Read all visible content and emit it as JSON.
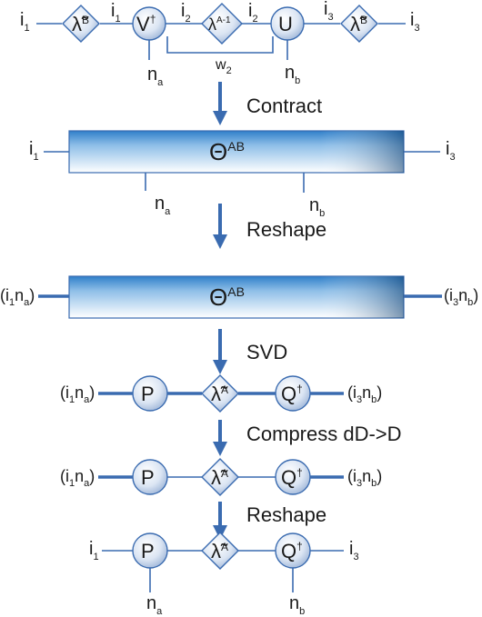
{
  "tensor_labels": {
    "lambda_b": {
      "base": "λ̃",
      "sup": "B"
    },
    "v_dagger": {
      "base": "V",
      "sup": "†"
    },
    "lambda_a_inv": {
      "base": "λ",
      "sup": "A-1"
    },
    "u": {
      "base": "U"
    },
    "theta": {
      "base": "Θ",
      "sup": "AB"
    },
    "p": {
      "base": "P"
    },
    "lambda_a": {
      "base": "λ̃",
      "sup": "A"
    },
    "q_dagger": {
      "base": "Q",
      "sup": "†"
    }
  },
  "index_labels": {
    "i": "i",
    "n": "n",
    "w": "w",
    "sub_1": "1",
    "sub_2": "2",
    "sub_3": "3",
    "sub_a": "a",
    "sub_b": "b",
    "open_paren": "(",
    "close_paren": ")"
  },
  "steps": {
    "contract": "Contract",
    "reshape_1": "Reshape",
    "svd": "SVD",
    "compress": "Compress dD->D",
    "reshape_2": "Reshape"
  },
  "colors": {
    "line": "#3a6bb0",
    "node_fill_light": "#f4f7fc",
    "node_fill_dark": "#a9bedd",
    "bar_top": "#2f7fc9",
    "bar_bottom": "#ffffff",
    "arrow": "#3a6bb0"
  }
}
